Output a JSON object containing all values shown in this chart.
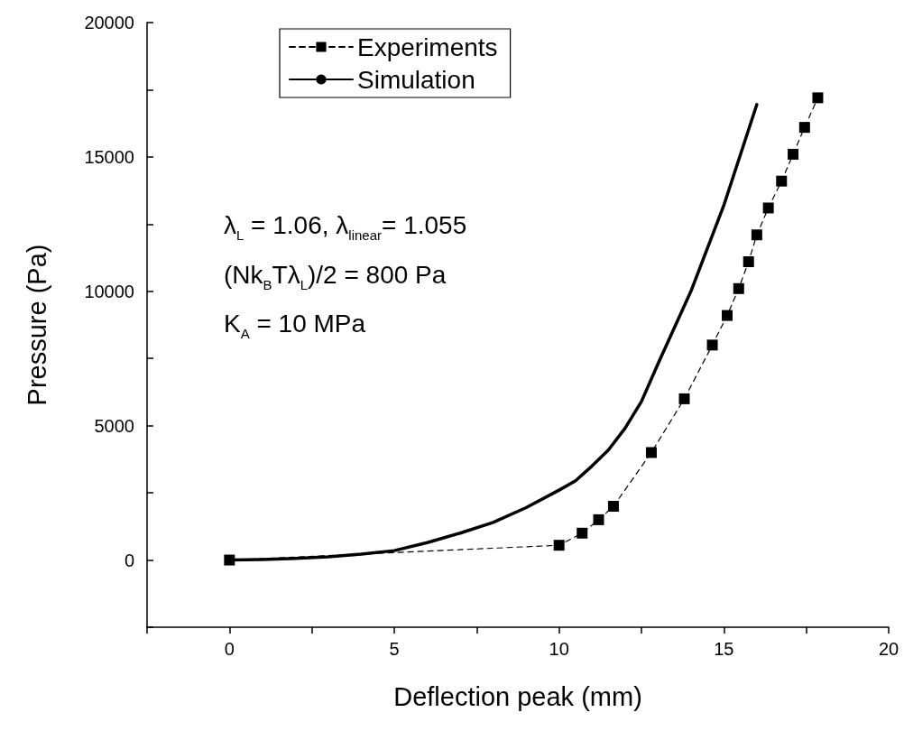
{
  "chart_data": {
    "type": "line",
    "xlabel": "Deflection peak (mm)",
    "ylabel": "Pressure (Pa)",
    "xlim": [
      -2.5,
      20
    ],
    "xticks": [
      {
        "value": -2.5,
        "label": null
      },
      0,
      {
        "value": 2.5,
        "label": null
      },
      5,
      {
        "value": 7.5,
        "label": null
      },
      10,
      {
        "value": 12.5,
        "label": null
      },
      15,
      {
        "value": 17.5,
        "label": null
      },
      20
    ],
    "ylim": [
      -2500,
      20000
    ],
    "yticks": [
      {
        "value": -2500,
        "label": null
      },
      0,
      {
        "value": 2500,
        "label": null
      },
      5000,
      {
        "value": 7500,
        "label": null
      },
      10000,
      {
        "value": 12500,
        "label": null
      },
      15000,
      {
        "value": 17500,
        "label": null
      },
      20000
    ],
    "grid": false,
    "legend": "top",
    "series": [
      {
        "name": "Experiments",
        "color": "#000000",
        "marker": "square",
        "line_style": "dashed",
        "x": [
          0,
          10,
          10.7,
          11.2,
          11.65,
          12.8,
          13.8,
          14.65,
          15.1,
          15.45,
          15.75,
          16,
          16.35,
          16.75,
          17.1,
          17.45,
          17.85
        ],
        "values": [
          0,
          550,
          1000,
          1500,
          2000,
          4000,
          6000,
          8000,
          9100,
          10100,
          11100,
          12100,
          13100,
          14100,
          15100,
          16100,
          17200
        ]
      },
      {
        "name": "Simulation",
        "color": "#000000",
        "marker": "none",
        "line_style": "solid",
        "x": [
          0,
          1,
          2,
          3,
          4,
          5,
          6,
          7,
          8,
          9,
          10,
          10.5,
          11,
          11.5,
          12,
          12.5,
          13,
          13.5,
          14,
          15,
          16
        ],
        "values": [
          0,
          20,
          60,
          120,
          220,
          350,
          650,
          1000,
          1400,
          1950,
          2600,
          2950,
          3500,
          4100,
          4900,
          5900,
          7300,
          8650,
          10000,
          13200,
          16950
        ]
      }
    ],
    "annotations": [
      "λ$_{L}$ = 1.06, λ$_{linear}$= 1.055",
      "(Nk$_{B}$Tλ$_{L}$)/2 = 800 Pa",
      "K$_{A}$ = 10 MPa"
    ]
  }
}
